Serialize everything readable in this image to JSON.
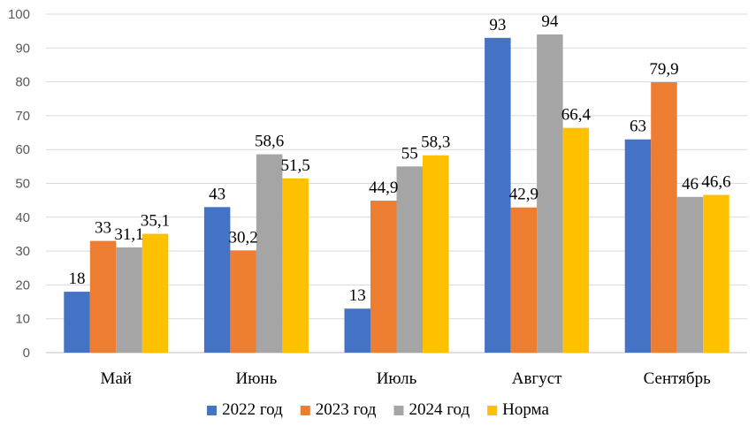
{
  "chart_data": {
    "type": "bar",
    "title": "",
    "xlabel": "",
    "ylabel": "",
    "ylim": [
      0,
      100
    ],
    "ytick_step": 10,
    "grid": true,
    "legend_position": "bottom",
    "categories": [
      "Май",
      "Июнь",
      "Июль",
      "Август",
      "Сентябрь"
    ],
    "series": [
      {
        "name": "2022 год",
        "color": "#4472C4",
        "values": [
          18,
          43,
          13,
          93,
          63
        ],
        "labels": [
          "18",
          "43",
          "13",
          "93",
          "63"
        ]
      },
      {
        "name": "2023 год",
        "color": "#ED7D31",
        "values": [
          33,
          30.2,
          44.9,
          42.9,
          79.9
        ],
        "labels": [
          "33",
          "30,2",
          "44,9",
          "42,9",
          "79,9"
        ]
      },
      {
        "name": "2024 год",
        "color": "#A5A5A5",
        "values": [
          31.1,
          58.6,
          55,
          94,
          46
        ],
        "labels": [
          "31,1",
          "58,6",
          "55",
          "94",
          "46"
        ]
      },
      {
        "name": "Норма",
        "color": "#FFC000",
        "values": [
          35.1,
          51.5,
          58.3,
          66.4,
          46.6
        ],
        "labels": [
          "35,1",
          "51,5",
          "58,3",
          "66,4",
          "46,6"
        ]
      }
    ]
  }
}
